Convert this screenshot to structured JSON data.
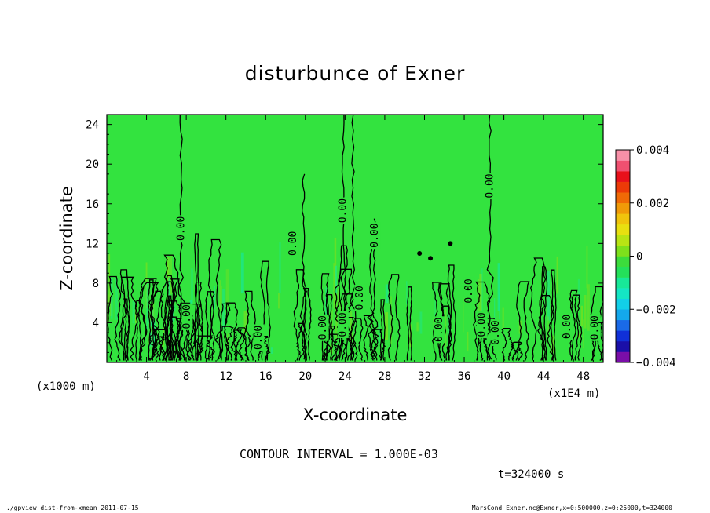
{
  "chart_data": {
    "type": "heatmap",
    "title": "disturbunce of Exner",
    "xlabel": "X-coordinate",
    "ylabel": "Z-coordinate",
    "x_unit_left": "(x1000 m)",
    "x_unit_right": "(x1E4 m)",
    "xlim": [
      0,
      50
    ],
    "ylim": [
      0,
      25
    ],
    "x_ticks": [
      4,
      8,
      12,
      16,
      20,
      24,
      28,
      32,
      36,
      40,
      44,
      48
    ],
    "y_ticks": [
      4,
      8,
      12,
      16,
      20,
      24
    ],
    "colorbar": {
      "min": -0.004,
      "max": 0.004,
      "tick_values": [
        0.004,
        0.002,
        0,
        -0.002,
        -0.004
      ],
      "tick_labels": [
        "0.004",
        "0.002",
        "0",
        "−0.002",
        "−0.004"
      ],
      "colors": [
        "#7a0ea8",
        "#1a0fa8",
        "#1030d8",
        "#1a6ae8",
        "#14a8ec",
        "#12d0e8",
        "#14e6c4",
        "#18e898",
        "#24e05a",
        "#3cdc3c",
        "#7ee01c",
        "#b8e414",
        "#e8e010",
        "#f0c40c",
        "#f09a08",
        "#f06a06",
        "#ec3a08",
        "#e8101a",
        "#f05070",
        "#f890a8"
      ]
    },
    "contour_label": "0.00",
    "contour_label_positions": [
      {
        "x": 7.5,
        "y": 13.5
      },
      {
        "x": 8.1,
        "y": 4.6
      },
      {
        "x": 15.3,
        "y": 2.5
      },
      {
        "x": 18.8,
        "y": 12.0
      },
      {
        "x": 21.8,
        "y": 3.5
      },
      {
        "x": 23.8,
        "y": 15.3
      },
      {
        "x": 23.8,
        "y": 3.8
      },
      {
        "x": 25.5,
        "y": 6.5
      },
      {
        "x": 27.0,
        "y": 12.8
      },
      {
        "x": 33.5,
        "y": 3.3
      },
      {
        "x": 36.5,
        "y": 7.2
      },
      {
        "x": 37.8,
        "y": 3.8
      },
      {
        "x": 38.6,
        "y": 17.8
      },
      {
        "x": 39.2,
        "y": 3.0
      },
      {
        "x": 46.4,
        "y": 3.6
      },
      {
        "x": 49.2,
        "y": 3.5
      }
    ],
    "field_value": 0
  },
  "annotations": {
    "contour_interval": "CONTOUR INTERVAL = 1.000E-03",
    "time": "t=324000 s",
    "footer_left": "./gpview_dist-from-xmean  2011-07-15",
    "footer_right": "MarsCond_Exner.nc@Exner,x=0:500000,z=0:25000,t=324000"
  },
  "colors": {
    "field_background": "#33e33f",
    "near_zero_positive": "#7ee01c",
    "near_zero_negative": "#18e898"
  }
}
